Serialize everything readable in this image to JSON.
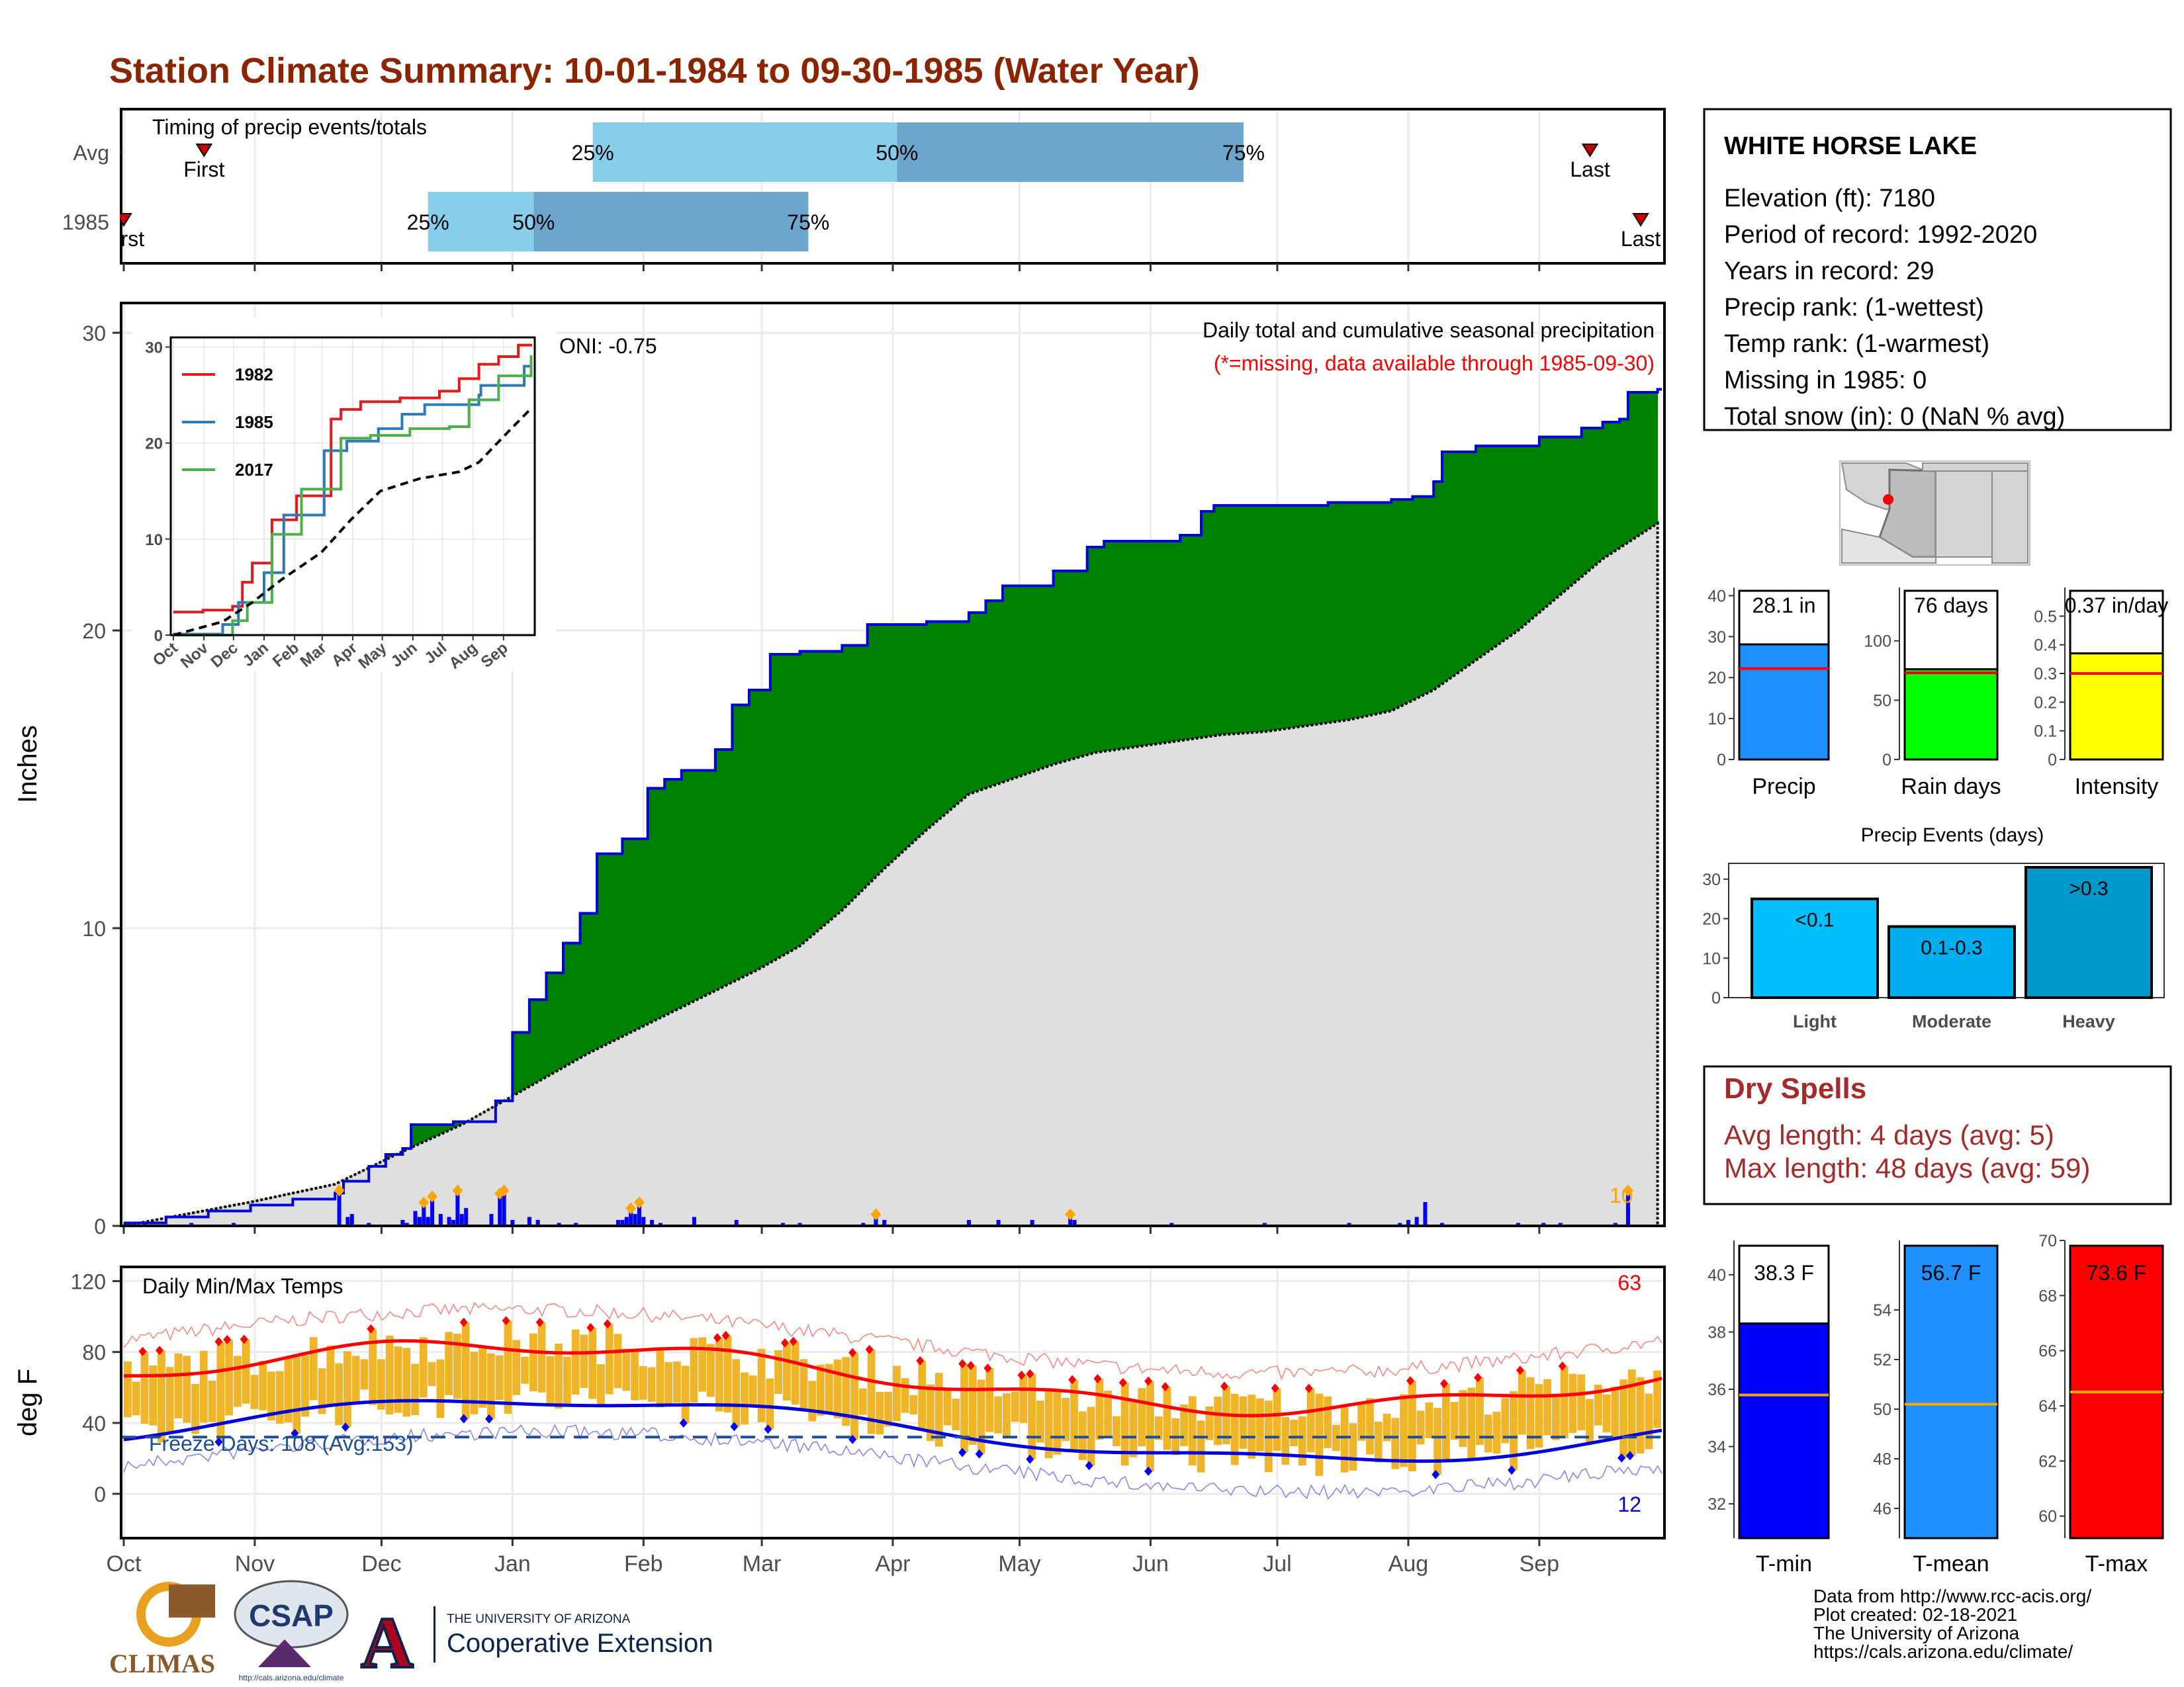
{
  "title": "Station Climate Summary: 10-01-1984 to 09-30-1985 (Water Year)",
  "colors": {
    "title": "#8b2500",
    "green": "#008000",
    "brown": "#7b5310",
    "grey_fill": "#dfdfdf",
    "blue_line": "#0000dd",
    "orange": "#ffa500",
    "light_blue": "#87ceeb",
    "mid_blue": "#6ca6cd",
    "temp_bar": "#f0b429",
    "red": "#ff0000",
    "dry_spell": "#a52a2a"
  },
  "months": [
    "Oct",
    "Nov",
    "Dec",
    "Jan",
    "Feb",
    "Mar",
    "Apr",
    "May",
    "Jun",
    "Jul",
    "Aug",
    "Sep"
  ],
  "timing": {
    "label": "Timing of precip events/totals",
    "rows": [
      {
        "name": "Avg",
        "first_day": 19,
        "p25": 111,
        "p50": 183,
        "p75": 265,
        "last_day": 347,
        "first_label": "First",
        "last_label": "Last"
      },
      {
        "name": "1985",
        "first_day": 0,
        "p25": 72,
        "p50": 97,
        "p75": 162,
        "last_day": 359,
        "first_label": "First",
        "last_label": "Last"
      }
    ],
    "p_labels": [
      "25%",
      "50%",
      "75%"
    ]
  },
  "precip": {
    "ylabel": "Inches",
    "ylim": [
      0,
      31
    ],
    "yticks": [
      0,
      10,
      20,
      30
    ],
    "note_title": "Daily total and cumulative seasonal precipitation",
    "note_missing": "(*=missing, data available through 1985-09-30)",
    "oni": "ONI: -0.75",
    "max_daily_label": "10",
    "year_cum": [
      [
        0,
        0.1
      ],
      [
        10,
        0.3
      ],
      [
        20,
        0.5
      ],
      [
        30,
        0.7
      ],
      [
        40,
        0.9
      ],
      [
        50,
        1.1
      ],
      [
        52,
        1.5
      ],
      [
        58,
        2.0
      ],
      [
        62,
        2.4
      ],
      [
        66,
        2.6
      ],
      [
        68,
        3.4
      ],
      [
        78,
        3.5
      ],
      [
        88,
        4.2
      ],
      [
        92,
        6.5
      ],
      [
        96,
        7.6
      ],
      [
        100,
        8.5
      ],
      [
        104,
        9.5
      ],
      [
        108,
        10.5
      ],
      [
        112,
        12.5
      ],
      [
        118,
        13.0
      ],
      [
        124,
        14.7
      ],
      [
        128,
        15.0
      ],
      [
        132,
        15.3
      ],
      [
        140,
        16.0
      ],
      [
        144,
        17.5
      ],
      [
        148,
        18.0
      ],
      [
        153,
        19.2
      ],
      [
        160,
        19.3
      ],
      [
        170,
        19.5
      ],
      [
        176,
        20.2
      ],
      [
        190,
        20.3
      ],
      [
        200,
        20.6
      ],
      [
        204,
        21.0
      ],
      [
        208,
        21.5
      ],
      [
        220,
        22.0
      ],
      [
        228,
        22.8
      ],
      [
        232,
        23.0
      ],
      [
        250,
        23.2
      ],
      [
        255,
        24.0
      ],
      [
        258,
        24.2
      ],
      [
        268,
        24.2
      ],
      [
        285,
        24.3
      ],
      [
        300,
        24.4
      ],
      [
        305,
        24.5
      ],
      [
        310,
        25.0
      ],
      [
        312,
        26.0
      ],
      [
        320,
        26.2
      ],
      [
        335,
        26.5
      ],
      [
        345,
        26.8
      ],
      [
        350,
        27.0
      ],
      [
        354,
        27.1
      ],
      [
        356,
        28.0
      ],
      [
        363,
        28.1
      ]
    ],
    "avg_cum": [
      [
        0,
        0.0
      ],
      [
        30,
        0.8
      ],
      [
        50,
        1.4
      ],
      [
        66,
        2.5
      ],
      [
        80,
        3.4
      ],
      [
        90,
        4.2
      ],
      [
        100,
        5.0
      ],
      [
        110,
        5.8
      ],
      [
        120,
        6.5
      ],
      [
        130,
        7.2
      ],
      [
        140,
        7.9
      ],
      [
        150,
        8.6
      ],
      [
        160,
        9.4
      ],
      [
        170,
        10.6
      ],
      [
        180,
        12.0
      ],
      [
        190,
        13.3
      ],
      [
        200,
        14.5
      ],
      [
        210,
        15.0
      ],
      [
        220,
        15.5
      ],
      [
        230,
        15.9
      ],
      [
        240,
        16.1
      ],
      [
        250,
        16.3
      ],
      [
        260,
        16.5
      ],
      [
        270,
        16.6
      ],
      [
        280,
        16.8
      ],
      [
        290,
        17.0
      ],
      [
        300,
        17.3
      ],
      [
        310,
        18.0
      ],
      [
        320,
        19.0
      ],
      [
        330,
        20.0
      ],
      [
        340,
        21.2
      ],
      [
        350,
        22.4
      ],
      [
        363,
        23.6
      ]
    ],
    "daily": [
      [
        5,
        0.1
      ],
      [
        16,
        0.1
      ],
      [
        26,
        0.1
      ],
      [
        51,
        1.1
      ],
      [
        53,
        0.3
      ],
      [
        54,
        0.4
      ],
      [
        58,
        0.1
      ],
      [
        66,
        0.2
      ],
      [
        67,
        0.1
      ],
      [
        69,
        0.5
      ],
      [
        70,
        0.3
      ],
      [
        71,
        0.7
      ],
      [
        72,
        0.3
      ],
      [
        73,
        0.9
      ],
      [
        75,
        0.4
      ],
      [
        77,
        0.3
      ],
      [
        78,
        0.2
      ],
      [
        79,
        1.1
      ],
      [
        80,
        0.4
      ],
      [
        81,
        0.6
      ],
      [
        87,
        0.4
      ],
      [
        89,
        1.0
      ],
      [
        90,
        1.1
      ],
      [
        92,
        0.2
      ],
      [
        96,
        0.3
      ],
      [
        98,
        0.2
      ],
      [
        103,
        0.1
      ],
      [
        107,
        0.1
      ],
      [
        117,
        0.2
      ],
      [
        118,
        0.2
      ],
      [
        119,
        0.3
      ],
      [
        120,
        0.5
      ],
      [
        121,
        0.4
      ],
      [
        122,
        0.7
      ],
      [
        123,
        0.3
      ],
      [
        125,
        0.2
      ],
      [
        127,
        0.1
      ],
      [
        135,
        0.3
      ],
      [
        145,
        0.2
      ],
      [
        156,
        0.1
      ],
      [
        160,
        0.1
      ],
      [
        175,
        0.1
      ],
      [
        178,
        0.3
      ],
      [
        180,
        0.2
      ],
      [
        200,
        0.2
      ],
      [
        207,
        0.2
      ],
      [
        215,
        0.2
      ],
      [
        224,
        0.3
      ],
      [
        225,
        0.2
      ],
      [
        248,
        0.1
      ],
      [
        270,
        0.1
      ],
      [
        290,
        0.1
      ],
      [
        302,
        0.1
      ],
      [
        304,
        0.2
      ],
      [
        306,
        0.3
      ],
      [
        308,
        0.8
      ],
      [
        312,
        0.1
      ],
      [
        330,
        0.1
      ],
      [
        336,
        0.1
      ],
      [
        340,
        0.1
      ],
      [
        353,
        0.1
      ],
      [
        356,
        1.1
      ]
    ],
    "diamond_days": [
      51,
      71,
      73,
      79,
      89,
      90,
      120,
      122,
      178,
      224,
      356
    ]
  },
  "inset": {
    "yticks": [
      0,
      10,
      20,
      30
    ],
    "xticks": [
      "Oct",
      "Nov",
      "Dec",
      "Jan",
      "Feb",
      "Mar",
      "Apr",
      "May",
      "Jun",
      "Jul",
      "Aug",
      "Sep"
    ],
    "legend": [
      {
        "name": "1982",
        "color": "#e31a1c"
      },
      {
        "name": "1985",
        "color": "#2c7bb6"
      },
      {
        "name": "2017",
        "color": "#4daf4a"
      }
    ],
    "series": {
      "1982": [
        [
          0,
          2.4
        ],
        [
          30,
          2.6
        ],
        [
          60,
          3.0
        ],
        [
          70,
          5.5
        ],
        [
          80,
          7.5
        ],
        [
          100,
          12.0
        ],
        [
          125,
          14.5
        ],
        [
          160,
          22.5
        ],
        [
          170,
          23.5
        ],
        [
          190,
          24.3
        ],
        [
          230,
          24.7
        ],
        [
          270,
          25.4
        ],
        [
          290,
          26.7
        ],
        [
          310,
          28.2
        ],
        [
          330,
          29.0
        ],
        [
          350,
          30.2
        ],
        [
          363,
          30.2
        ]
      ],
      "1985": [
        [
          0,
          0.1
        ],
        [
          50,
          1.1
        ],
        [
          66,
          3.4
        ],
        [
          92,
          6.5
        ],
        [
          112,
          12.5
        ],
        [
          153,
          19.2
        ],
        [
          176,
          20.2
        ],
        [
          208,
          21.5
        ],
        [
          232,
          23.0
        ],
        [
          255,
          24.0
        ],
        [
          310,
          25.0
        ],
        [
          312,
          26.0
        ],
        [
          356,
          28.0
        ],
        [
          363,
          28.1
        ]
      ],
      "2017": [
        [
          0,
          0.0
        ],
        [
          60,
          1.5
        ],
        [
          75,
          3.4
        ],
        [
          100,
          10.5
        ],
        [
          130,
          15.2
        ],
        [
          170,
          20.5
        ],
        [
          200,
          20.8
        ],
        [
          240,
          21.5
        ],
        [
          280,
          21.7
        ],
        [
          300,
          24.5
        ],
        [
          330,
          27.0
        ],
        [
          363,
          29.0
        ]
      ],
      "avg": [
        [
          0,
          0.0
        ],
        [
          50,
          1.4
        ],
        [
          80,
          3.4
        ],
        [
          110,
          5.8
        ],
        [
          150,
          8.6
        ],
        [
          180,
          12.0
        ],
        [
          210,
          15.0
        ],
        [
          250,
          16.3
        ],
        [
          290,
          17.0
        ],
        [
          310,
          18.0
        ],
        [
          340,
          21.2
        ],
        [
          363,
          23.6
        ]
      ]
    }
  },
  "temps": {
    "ylabel": "deg F",
    "title": "Daily Min/Max Temps",
    "yticks": [
      0,
      40,
      80,
      120
    ],
    "ylim": [
      -25,
      128
    ],
    "freeze_label": "Freeze Days: 108 (Avg:153)",
    "freeze_line": 32,
    "max_count_label": "63",
    "min_count_label": "12"
  },
  "station": {
    "name": "WHITE HORSE LAKE",
    "lines": [
      "Elevation (ft): 7180",
      "Period of record: 1992-2020",
      "Years in record: 29",
      "Precip rank:  (1-wettest)",
      "Temp rank:  (1-warmest)",
      "Missing in 1985: 0",
      "Total snow (in): 0 (NaN % avg)"
    ]
  },
  "mini_bars": [
    {
      "label": "Precip",
      "value": 28.1,
      "value_label": "28.1 in",
      "avg": 22.2,
      "ylim": [
        0,
        42
      ],
      "yticks": [
        0,
        10,
        20,
        30,
        40
      ],
      "color": "#1e90ff"
    },
    {
      "label": "Rain days",
      "value": 76,
      "value_label": "76 days",
      "avg": 73,
      "ylim": [
        0,
        145
      ],
      "yticks": [
        0,
        50,
        100
      ],
      "color": "#00ff00"
    },
    {
      "label": "Intensity",
      "value": 0.37,
      "value_label": "0.37 in/day",
      "avg": 0.3,
      "ylim": [
        0,
        0.6
      ],
      "yticks": [
        0.0,
        0.1,
        0.2,
        0.3,
        0.4,
        0.5
      ],
      "color": "#ffff00"
    }
  ],
  "events": {
    "title": "Precip Events (days)",
    "ylim": [
      0,
      34
    ],
    "yticks": [
      0,
      10,
      20,
      30
    ],
    "categories": [
      "Light",
      "Moderate",
      "Heavy"
    ],
    "labels": [
      "<0.1",
      "0.1-0.3",
      ">0.3"
    ],
    "values": [
      25,
      18,
      33
    ],
    "colors": [
      "#00bfff",
      "#00aeef",
      "#0099cc"
    ]
  },
  "dry_spells": {
    "title": "Dry Spells",
    "lines": [
      "Avg length: 4 days (avg: 5)",
      "Max length: 48 days (avg: 59)"
    ]
  },
  "temp_bars": [
    {
      "label": "T-min",
      "value": 38.3,
      "value_label": "38.3 F",
      "avg": 35.8,
      "ylim": [
        30.8,
        41.2
      ],
      "yticks": [
        32,
        34,
        36,
        38,
        40
      ],
      "color": "#0000ff"
    },
    {
      "label": "T-mean",
      "value": 56.7,
      "value_label": "56.7 F",
      "avg": 50.2,
      "ylim": [
        44.8,
        56.8
      ],
      "yticks": [
        46,
        48,
        50,
        52,
        54
      ],
      "color": "#1e90ff"
    },
    {
      "label": "T-max",
      "value": 73.6,
      "value_label": "73.6 F",
      "avg": 64.5,
      "ylim": [
        59.2,
        70.0
      ],
      "yticks": [
        60,
        62,
        64,
        66,
        68,
        70
      ],
      "color": "#ff0000"
    }
  ],
  "credits": [
    "Data from http://www.rcc-acis.org/",
    "Plot created: 02-18-2021",
    "The University of Arizona",
    "https://cals.arizona.edu/climate/"
  ],
  "logos": {
    "climas": "CLIMAS",
    "csap": "CSAP",
    "csap_url": "http://cals.arizona.edu/climate",
    "ua_letter": "A",
    "ua_small": "THE UNIVERSITY OF ARIZONA",
    "ua_big": "Cooperative Extension"
  }
}
